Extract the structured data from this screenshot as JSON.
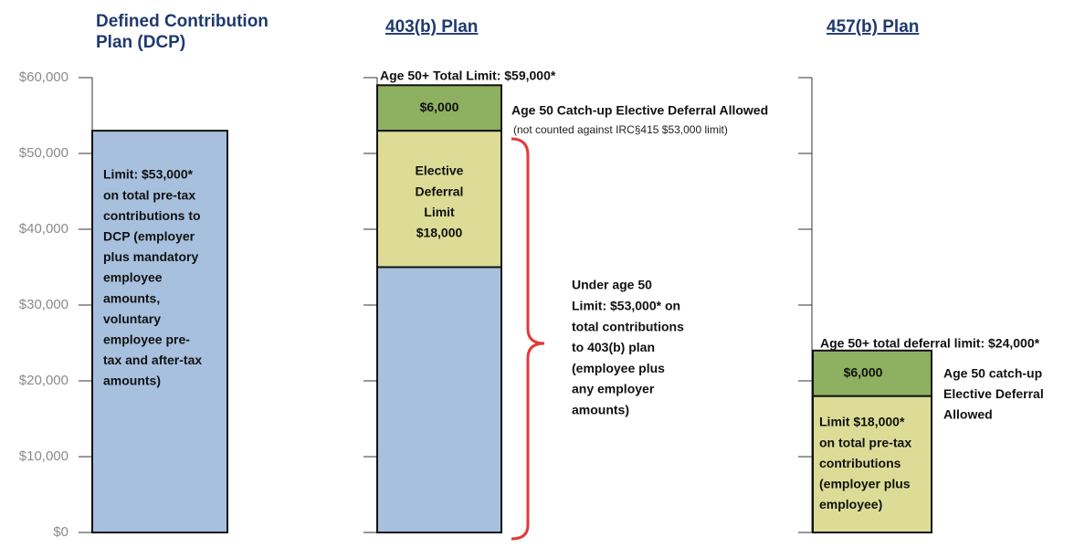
{
  "chart_data": {
    "type": "stacked_bar",
    "ylim": [
      0,
      60000
    ],
    "yticks": [
      {
        "value": 0,
        "label": "$0"
      },
      {
        "value": 10000,
        "label": "$10,000"
      },
      {
        "value": 20000,
        "label": "$20,000"
      },
      {
        "value": 30000,
        "label": "$30,000"
      },
      {
        "value": 40000,
        "label": "$40,000"
      },
      {
        "value": 50000,
        "label": "$50,000"
      },
      {
        "value": 60000,
        "label": "$60,000"
      }
    ],
    "plans": [
      {
        "title": [
          "Defined Contribution",
          "Plan (DCP)"
        ],
        "segments": [
          {
            "value": 53000,
            "color": "#a7c0de",
            "label": [
              "Limit:  $53,000*",
              "on total pre-tax",
              "contributions to",
              "DCP   (employer",
              "plus mandatory",
              "employee",
              "amounts,",
              "voluntary",
              "employee pre-",
              "tax and after-tax",
              "amounts)"
            ]
          }
        ]
      },
      {
        "title": [
          "403(b) Plan"
        ],
        "segments": [
          {
            "value": 35000,
            "color": "#a7c0de",
            "label": []
          },
          {
            "value": 18000,
            "color": "#dcdc96",
            "label": [
              "Elective",
              "Deferral",
              "Limit",
              "$18,000"
            ]
          },
          {
            "value": 6000,
            "color": "#8db061",
            "label": [
              "$6,000"
            ]
          }
        ]
      },
      {
        "title": [
          "457(b) Plan"
        ],
        "segments": [
          {
            "value": 18000,
            "color": "#dcdc96",
            "label": [
              "Limit $18,000*",
              "on total pre-tax",
              "contributions",
              "(employer plus",
              "employee)"
            ]
          },
          {
            "value": 6000,
            "color": "#8db061",
            "label": [
              "$6,000"
            ]
          }
        ]
      }
    ],
    "annotations": {
      "total_403": "Age 50+ Total Limit: $59,000*",
      "catchup_403": "Age 50 Catch-up Elective Deferral Allowed",
      "catchup_403_note": "(not counted against  IRC§415 $53,000 limit)",
      "under50_403": [
        "Under age 50",
        "Limit: $53,000* on",
        "total contributions",
        "to 403(b) plan",
        "(employee plus",
        "any employer",
        "amounts)"
      ],
      "total_457": "Age 50+ total deferral limit: $24,000*",
      "catchup_457": [
        "Age 50 catch-up",
        "Elective Deferral",
        "Allowed"
      ]
    },
    "bracket_color": "#e03a3a"
  }
}
